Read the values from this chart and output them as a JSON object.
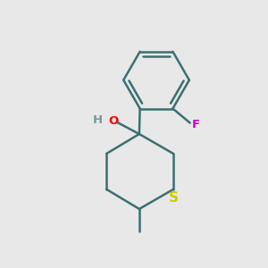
{
  "background_color": "#e8e8e8",
  "bond_color": "#3a7070",
  "bond_width": 1.8,
  "S_color": "#cccc00",
  "O_color": "#ff0000",
  "H_color": "#7a9898",
  "F_color": "#cc00cc",
  "figsize": [
    3.0,
    3.0
  ],
  "dpi": 100,
  "xlim": [
    0,
    10
  ],
  "ylim": [
    0,
    10
  ]
}
